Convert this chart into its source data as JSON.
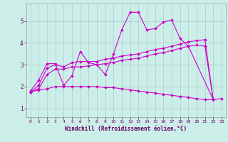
{
  "background_color": "#cceee8",
  "grid_color": "#aacccc",
  "line_color": "#cc00cc",
  "marker_color": "#cc00cc",
  "xlabel": "Windchill (Refroidissement éolien,°C)",
  "xlim": [
    -0.5,
    23.5
  ],
  "ylim": [
    0.6,
    5.8
  ],
  "yticks": [
    1,
    2,
    3,
    4,
    5
  ],
  "xticks": [
    0,
    1,
    2,
    3,
    4,
    5,
    6,
    7,
    8,
    9,
    10,
    11,
    12,
    13,
    14,
    15,
    16,
    17,
    18,
    19,
    20,
    21,
    22,
    23
  ],
  "series": [
    [
      1.8,
      2.3,
      3.05,
      3.05,
      2.05,
      2.5,
      3.6,
      3.1,
      3.0,
      2.55,
      3.5,
      4.6,
      5.4,
      5.4,
      4.6,
      4.65,
      4.95,
      5.05,
      4.2,
      3.85,
      null,
      null,
      1.4,
      1.45
    ],
    [
      1.75,
      2.05,
      2.85,
      3.0,
      2.9,
      3.1,
      3.15,
      3.15,
      3.15,
      3.25,
      3.3,
      3.4,
      3.45,
      3.5,
      3.6,
      3.7,
      3.75,
      3.85,
      3.95,
      4.05,
      4.1,
      4.15,
      1.4,
      null
    ],
    [
      1.75,
      1.9,
      2.55,
      2.8,
      2.8,
      2.9,
      2.9,
      2.95,
      3.0,
      3.05,
      3.1,
      3.2,
      3.25,
      3.3,
      3.4,
      3.5,
      3.55,
      3.65,
      3.75,
      3.85,
      3.9,
      3.85,
      1.4,
      null
    ],
    [
      1.75,
      1.85,
      1.9,
      2.0,
      2.0,
      2.0,
      2.0,
      2.0,
      2.0,
      1.95,
      1.95,
      1.9,
      1.85,
      1.8,
      1.75,
      1.7,
      1.65,
      1.6,
      1.55,
      1.5,
      1.45,
      1.4,
      1.4,
      null
    ]
  ]
}
